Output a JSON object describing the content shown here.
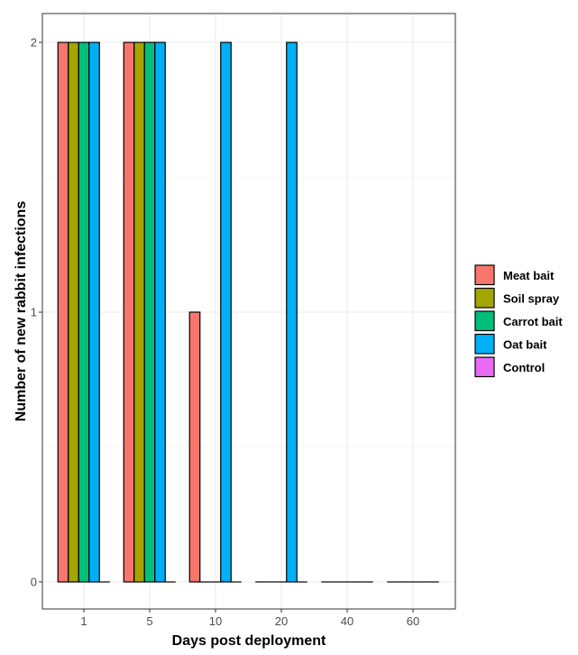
{
  "chart_data": {
    "type": "bar",
    "xlabel": "Days post deployment",
    "ylabel": "Number of new rabbit infections",
    "categories": [
      "1",
      "5",
      "10",
      "20",
      "40",
      "60"
    ],
    "ylim": [
      0,
      2
    ],
    "yticks": [
      0,
      1,
      2
    ],
    "grid": true,
    "legend_position": "right",
    "series": [
      {
        "name": "Meat bait",
        "color": "#F8766D",
        "values": [
          2,
          2,
          1,
          0,
          0,
          0
        ]
      },
      {
        "name": "Soil spray",
        "color": "#A3A500",
        "values": [
          2,
          2,
          0,
          0,
          0,
          0
        ]
      },
      {
        "name": "Carrot bait",
        "color": "#00BF7D",
        "values": [
          2,
          2,
          0,
          0,
          0,
          0
        ]
      },
      {
        "name": "Oat bait",
        "color": "#00B0F6",
        "values": [
          2,
          2,
          2,
          2,
          0,
          0
        ]
      },
      {
        "name": "Control",
        "color": "#E76BF3",
        "values": [
          0,
          0,
          0,
          0,
          0,
          0
        ]
      }
    ]
  }
}
